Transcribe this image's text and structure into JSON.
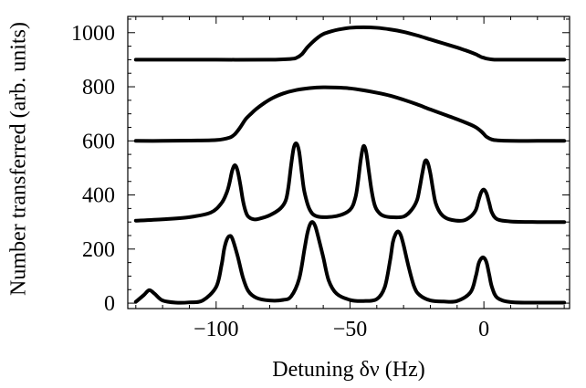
{
  "chart_data": {
    "type": "line",
    "title": "",
    "xlabel": "Detuning δν (Hz)",
    "ylabel": "Number transferred (arb. units)",
    "xlim": [
      -133,
      32
    ],
    "ylim": [
      -20,
      1060
    ],
    "grid": false,
    "legend": "none",
    "x_ticks": [
      {
        "value": -100,
        "label": "−100"
      },
      {
        "value": -50,
        "label": "−50"
      },
      {
        "value": 0,
        "label": "0"
      }
    ],
    "y_ticks": [
      {
        "value": 0,
        "label": "0"
      },
      {
        "value": 200,
        "label": "200"
      },
      {
        "value": 400,
        "label": "400"
      },
      {
        "value": 600,
        "label": "600"
      },
      {
        "value": 800,
        "label": "800"
      },
      {
        "value": 1000,
        "label": "1000"
      }
    ],
    "line_color": "#000000",
    "series": [
      {
        "x": [
          -130,
          -127,
          -125,
          -123,
          -120,
          -115,
          -110,
          -105,
          -100,
          -98,
          -97,
          -96,
          -95,
          -94,
          -92,
          -90,
          -88,
          -85,
          -80,
          -75,
          -72,
          -69,
          -67,
          -66,
          -65,
          -64,
          -63,
          -62,
          -60,
          -58,
          -55,
          -50,
          -45,
          -40,
          -37,
          -35,
          -34,
          -33,
          -32,
          -31,
          -30,
          -28,
          -26,
          -24,
          -20,
          -15,
          -10,
          -5,
          -3,
          -2,
          -1,
          0,
          1,
          2,
          3,
          5,
          10,
          20,
          30
        ],
        "y": [
          5,
          30,
          48,
          35,
          10,
          2,
          3,
          10,
          60,
          140,
          200,
          235,
          248,
          240,
          175,
          95,
          45,
          20,
          10,
          12,
          25,
          90,
          200,
          255,
          290,
          300,
          285,
          250,
          170,
          85,
          35,
          12,
          8,
          15,
          60,
          160,
          225,
          255,
          265,
          250,
          215,
          130,
          60,
          30,
          10,
          6,
          8,
          40,
          100,
          145,
          165,
          168,
          150,
          105,
          60,
          20,
          4,
          2,
          2
        ]
      },
      {
        "x": [
          -130,
          -120,
          -110,
          -102,
          -98,
          -96,
          -95,
          -94,
          -93,
          -92,
          -91,
          -90,
          -89,
          -88,
          -86,
          -84,
          -80,
          -76,
          -74,
          -73,
          -72,
          -71,
          -70,
          -69,
          -68,
          -67,
          -65,
          -62,
          -55,
          -50,
          -48,
          -47,
          -46,
          -45,
          -44,
          -43,
          -42,
          -41,
          -40,
          -38,
          -35,
          -30,
          -27,
          -25,
          -24,
          -23,
          -22,
          -21,
          -20,
          -19,
          -18,
          -16,
          -13,
          -8,
          -5,
          -3,
          -2,
          -1,
          0,
          1,
          2,
          3,
          5,
          10,
          20,
          30
        ],
        "y": [
          305,
          310,
          318,
          335,
          370,
          410,
          445,
          490,
          510,
          490,
          440,
          380,
          340,
          320,
          310,
          312,
          325,
          350,
          380,
          430,
          510,
          575,
          590,
          560,
          480,
          410,
          345,
          320,
          322,
          345,
          390,
          450,
          530,
          580,
          560,
          490,
          420,
          370,
          345,
          325,
          318,
          320,
          345,
          380,
          425,
          480,
          525,
          520,
          480,
          420,
          370,
          330,
          310,
          305,
          320,
          345,
          380,
          410,
          420,
          405,
          370,
          335,
          310,
          302,
          300,
          300
        ]
      },
      {
        "x": [
          -130,
          -120,
          -110,
          -100,
          -95,
          -93,
          -91,
          -89,
          -87,
          -85,
          -82,
          -79,
          -75,
          -70,
          -65,
          -60,
          -55,
          -50,
          -45,
          -40,
          -35,
          -30,
          -25,
          -20,
          -15,
          -10,
          -5,
          -3,
          -1,
          0,
          1,
          3,
          5,
          10,
          20,
          30
        ],
        "y": [
          600,
          600,
          601,
          603,
          612,
          625,
          650,
          680,
          700,
          718,
          740,
          758,
          775,
          788,
          795,
          798,
          797,
          794,
          787,
          778,
          767,
          752,
          735,
          716,
          698,
          680,
          660,
          650,
          635,
          625,
          615,
          605,
          602,
          600,
          600,
          600
        ]
      },
      {
        "x": [
          -130,
          -120,
          -100,
          -80,
          -72,
          -70,
          -68,
          -66,
          -64,
          -62,
          -60,
          -57,
          -54,
          -50,
          -45,
          -40,
          -35,
          -30,
          -25,
          -20,
          -15,
          -10,
          -7,
          -5,
          -3,
          -2,
          -1,
          0,
          1,
          3,
          5,
          10,
          20,
          30
        ],
        "y": [
          900,
          900,
          900,
          900,
          903,
          907,
          920,
          945,
          965,
          982,
          995,
          1005,
          1012,
          1018,
          1020,
          1018,
          1012,
          1003,
          990,
          975,
          960,
          945,
          935,
          928,
          920,
          915,
          910,
          907,
          904,
          901,
          900,
          900,
          900,
          900
        ]
      }
    ]
  }
}
